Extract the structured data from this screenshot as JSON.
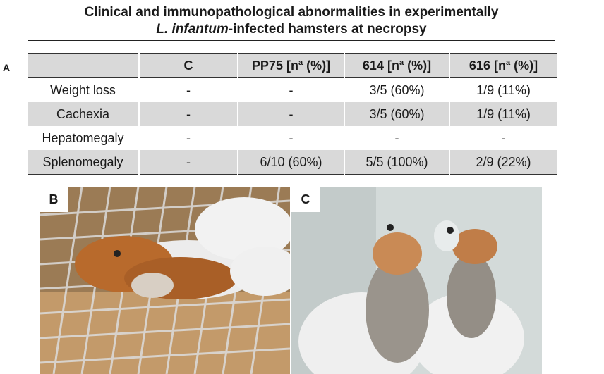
{
  "title": {
    "line1": "Clinical and immunopathological abnormalities in experimentally",
    "line2_italic": "L. infantum",
    "line2_rest": "-infected hamsters at necropsy"
  },
  "panels": {
    "a": "A",
    "b": "B",
    "c": "C"
  },
  "table": {
    "headers": [
      "",
      "C",
      "PP75 [n",
      "614 [n",
      "616 [n"
    ],
    "header_sup": "a",
    "header_suffix": " (%)]",
    "rows": [
      [
        "Weight loss",
        "-",
        "-",
        "3/5 (60%)",
        "1/9 (11%)"
      ],
      [
        "Cachexia",
        "-",
        "-",
        "3/5 (60%)",
        "1/9 (11%)"
      ],
      [
        "Hepatomegaly",
        "-",
        "-",
        "-",
        "-"
      ],
      [
        "Splenomegaly",
        "-",
        "6/10 (60%)",
        "5/5 (100%)",
        "2/9 (22%)"
      ]
    ]
  },
  "colors": {
    "shade": "#d9d9d9",
    "hamster": "#b86a2c"
  }
}
